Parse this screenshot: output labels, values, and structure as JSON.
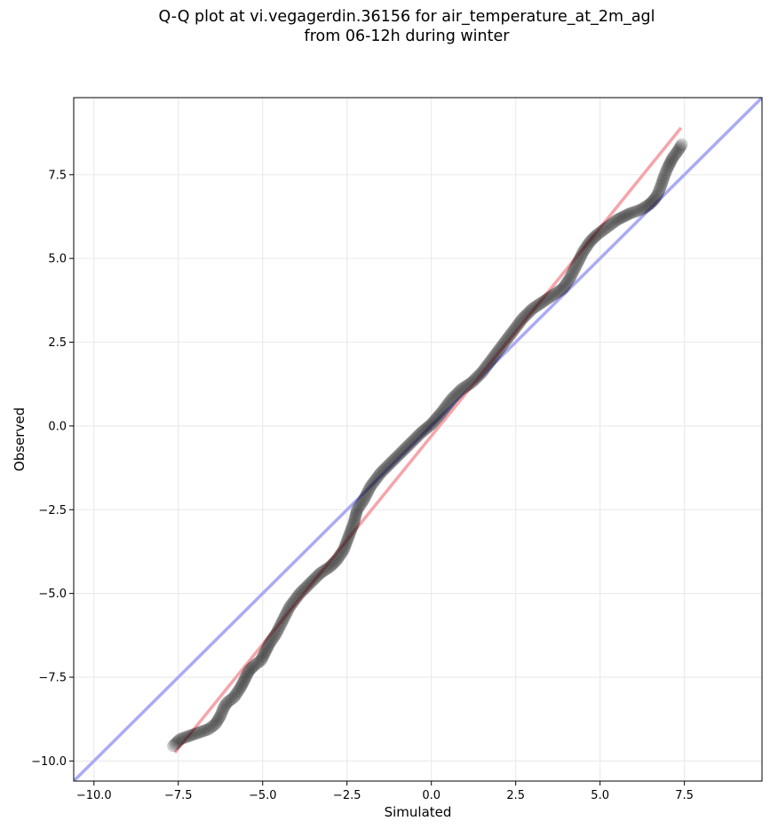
{
  "title": {
    "line1": "Q-Q plot at vi.vegagerdin.36156 for air_temperature_at_2m_agl",
    "line2": "from 06-12h during winter"
  },
  "colors": {
    "identity_line": "#aaaaf5",
    "fit_line": "#f5a5aa",
    "points": "#000000",
    "grid": "#ebebeb"
  },
  "chart_data": {
    "type": "scatter",
    "title": "Q-Q plot at vi.vegagerdin.36156 for air_temperature_at_2m_agl from 06-12h during winter",
    "xlabel": "Simulated",
    "ylabel": "Observed",
    "xlim": [
      -10.6,
      9.8
    ],
    "ylim": [
      -10.6,
      9.8
    ],
    "grid": true,
    "xticks": [
      -10.0,
      -7.5,
      -5.0,
      -2.5,
      0.0,
      2.5,
      5.0,
      7.5
    ],
    "yticks": [
      -10.0,
      -7.5,
      -5.0,
      -2.5,
      0.0,
      2.5,
      5.0,
      7.5
    ],
    "xtick_labels": [
      "−10.0",
      "−7.5",
      "−5.0",
      "−2.5",
      "0.0",
      "2.5",
      "5.0",
      "7.5"
    ],
    "ytick_labels": [
      "−10.0",
      "−7.5",
      "−5.0",
      "−2.5",
      "0.0",
      "2.5",
      "5.0",
      "7.5"
    ],
    "identity_line": {
      "x": [
        -10.6,
        9.8
      ],
      "y": [
        -10.6,
        9.8
      ]
    },
    "fit_line": {
      "x": [
        -7.6,
        7.4
      ],
      "y": [
        -9.75,
        8.9
      ]
    },
    "quantiles": {
      "x": [
        -7.65,
        -7.45,
        -6.6,
        -6.4,
        -6.25,
        -6.15,
        -6.05,
        -5.85,
        -5.65,
        -5.5,
        -5.4,
        -5.25,
        -5.05,
        -4.95,
        -4.8,
        -4.6,
        -4.4,
        -4.2,
        -3.9,
        -3.6,
        -3.3,
        -3.0,
        -2.8,
        -2.6,
        -2.45,
        -2.3,
        -2.2,
        -2.0,
        -1.8,
        -1.5,
        -1.2,
        -0.9,
        -0.6,
        -0.3,
        0.0,
        0.3,
        0.6,
        0.9,
        1.2,
        1.5,
        1.8,
        2.1,
        2.4,
        2.7,
        3.0,
        3.3,
        3.6,
        3.9,
        4.1,
        4.3,
        4.5,
        4.7,
        4.9,
        5.1,
        5.3,
        5.5,
        5.7,
        5.9,
        6.2,
        6.45,
        6.6,
        6.7,
        6.8,
        6.9,
        7.0,
        7.15,
        7.3,
        7.42
      ],
      "y": [
        -9.55,
        -9.35,
        -9.05,
        -8.9,
        -8.65,
        -8.4,
        -8.25,
        -8.1,
        -7.8,
        -7.5,
        -7.3,
        -7.15,
        -7.0,
        -6.8,
        -6.5,
        -6.2,
        -5.8,
        -5.4,
        -5.0,
        -4.7,
        -4.4,
        -4.2,
        -4.0,
        -3.7,
        -3.3,
        -2.9,
        -2.5,
        -2.2,
        -1.8,
        -1.4,
        -1.1,
        -0.8,
        -0.5,
        -0.2,
        0.05,
        0.4,
        0.8,
        1.1,
        1.3,
        1.6,
        2.0,
        2.4,
        2.8,
        3.2,
        3.5,
        3.7,
        3.9,
        4.1,
        4.4,
        4.8,
        5.2,
        5.5,
        5.7,
        5.85,
        6.0,
        6.15,
        6.25,
        6.35,
        6.45,
        6.6,
        6.75,
        6.9,
        7.15,
        7.45,
        7.7,
        8.0,
        8.2,
        8.4
      ]
    }
  }
}
